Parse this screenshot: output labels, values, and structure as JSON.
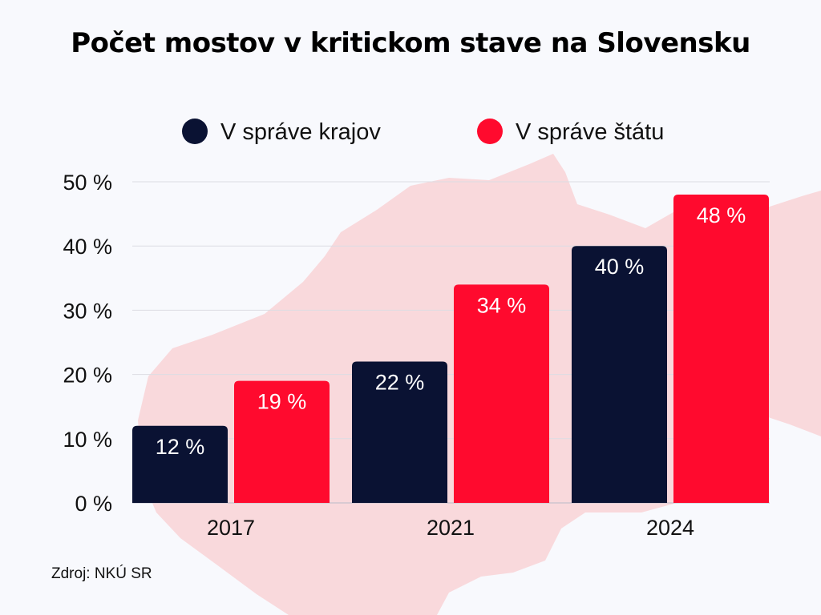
{
  "chart_data": {
    "type": "bar",
    "title": "Počet mostov v kritickom stave na Slovensku",
    "categories": [
      "2017",
      "2021",
      "2024"
    ],
    "series": [
      {
        "name": "V správe krajov",
        "values": [
          12,
          22,
          40
        ],
        "labels": [
          "12 %",
          "22 %",
          "40 %"
        ],
        "color": "#0a1233"
      },
      {
        "name": "V správe štátu",
        "values": [
          19,
          34,
          48
        ],
        "labels": [
          "19 %",
          "34 %",
          "48 %"
        ],
        "color": "#ff0a2e"
      }
    ],
    "ylim": [
      0,
      50
    ],
    "yticks": [
      0,
      10,
      20,
      30,
      40,
      50
    ],
    "ytick_labels": [
      "0 %",
      "10 %",
      "20 %",
      "30 %",
      "40 %",
      "50 %"
    ],
    "grid": true,
    "legend_position": "top",
    "background_map_color": "#f9d9dc",
    "source": "Zdroj: NKÚ SR"
  }
}
